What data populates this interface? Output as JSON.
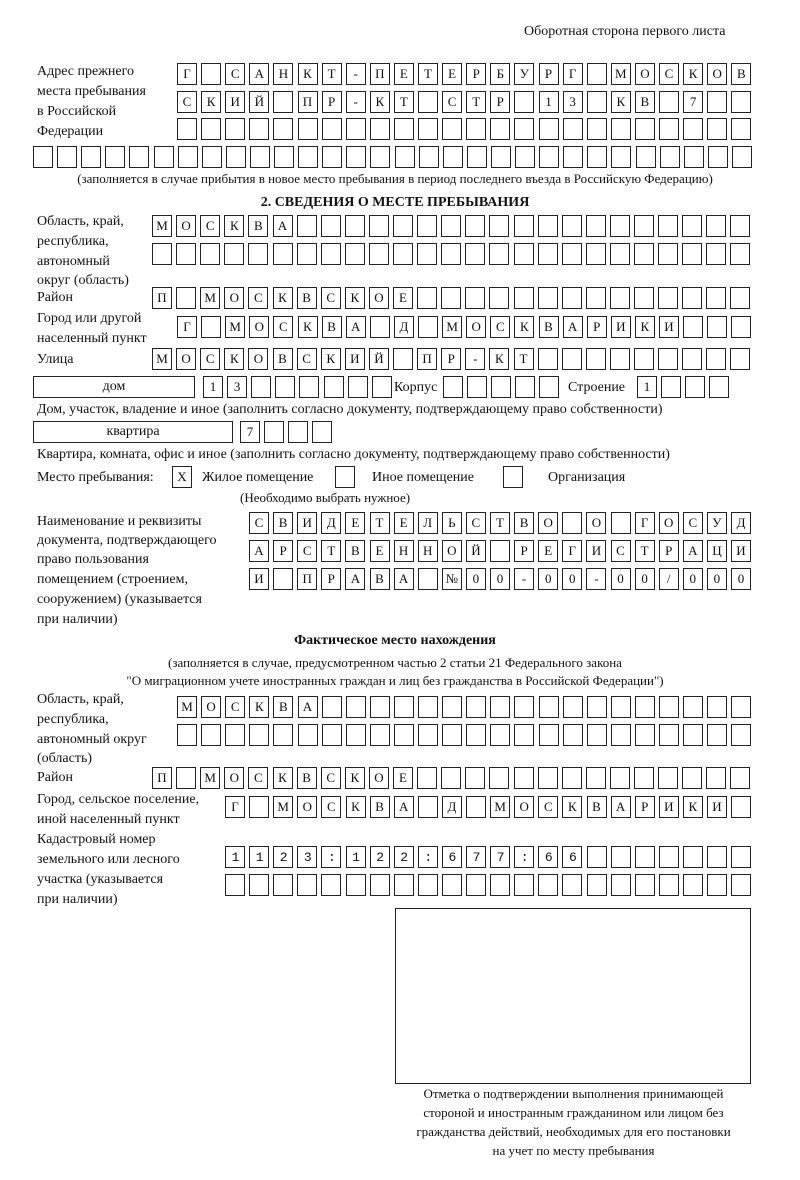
{
  "header": "Оборотная сторона первого листа",
  "prev_address": {
    "label": [
      "Адрес прежнего",
      "места пребывания",
      "в Российской",
      "Федерации"
    ],
    "rows": [
      "Г САНКТ-ПЕТЕРБУРГ МОСКОВ",
      "СКИЙ ПР-КТ СТР 13 КВ 7",
      "",
      ""
    ],
    "note": "(заполняется в случае прибытия в новое место пребывания в период последнего въезда в Российскую Федерацию)"
  },
  "section2": {
    "title": "2. СВЕДЕНИЯ О МЕСТЕ ПРЕБЫВАНИЯ",
    "region_label": [
      "Область, край,",
      "республика,",
      "автономный",
      "округ (область)"
    ],
    "region_rows": [
      "МОСКВА",
      ""
    ],
    "district_label": "Район",
    "district": "П МОСКВСКОЕ",
    "city_label": [
      "Город или другой",
      "населенный пункт"
    ],
    "city": "Г МОСКВА Д МОСКВАРИКИ",
    "street_label": "Улица",
    "street": "МОСКОВСКИЙ ПР-КТ",
    "house_type": "дом",
    "house": "13",
    "korpus_label": "Корпус",
    "korpus": "",
    "stroenie_label": "Строение",
    "stroenie": "1",
    "house_note": "Дом, участок, владение и иное (заполнить согласно документу, подтверждающему право собственности)",
    "flat_type": "квартира",
    "flat": "7",
    "flat_note": "Квартира, комната, офис и иное (заполнить согласно документу, подтверждающему право собственности)",
    "stay_label": "Место пребывания:",
    "options": [
      {
        "label": "Жилое помещение",
        "mark": "X"
      },
      {
        "label": "Иное помещение",
        "mark": ""
      },
      {
        "label": "Организация",
        "mark": ""
      }
    ],
    "stay_note": "(Необходимо выбрать нужное)",
    "doc_label": [
      "Наименование и реквизиты",
      "документа, подтверждающего",
      "право пользования",
      "помещением (строением,",
      "сооружением) (указывается",
      "при наличии)"
    ],
    "doc_rows": [
      "СВИДЕТЕЛЬСТВО О ГОСУД",
      "АРСТВЕННОЙ РЕГИСТРАЦИ",
      "И ПРАВА №00-00-00/000"
    ]
  },
  "actual": {
    "title": "Фактическое место нахождения",
    "note": [
      "(заполняется в случае, предусмотренном частью 2 статьи 21 Федерального закона",
      "\"О миграционном учете иностранных граждан и лиц без гражданства в Российской Федерации\")"
    ],
    "region_label": [
      "Область, край,",
      "республика,",
      "автономный округ",
      "(область)"
    ],
    "region_rows": [
      "МОСКВА",
      ""
    ],
    "district_label": "Район",
    "district": "П МОСКВСКОЕ",
    "city_label": [
      "Город, сельское поселение,",
      "иной населенный пункт"
    ],
    "city": "Г МОСКВА Д МОСКВАРИКИ",
    "cadastre_label": [
      "Кадастровый номер",
      "земельного или лесного",
      "участка (указывается",
      "при наличии)"
    ],
    "cadastre_rows": [
      "1123:122:677:66",
      ""
    ]
  },
  "stamp_caption": [
    "Отметка о подтверждении выполнения принимающей",
    "стороной и иностранным гражданином или лицом без",
    "гражданства действий, необходимых для его постановки",
    "на учет по месту пребывания"
  ]
}
